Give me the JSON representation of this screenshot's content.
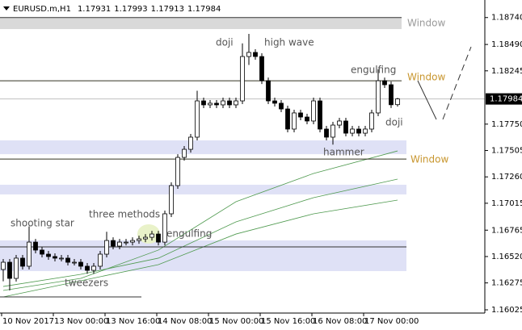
{
  "chart_data": {
    "type": "candlestick",
    "symbol": "EURUSD.m,H1",
    "categories": [
      "10 Nov 2017",
      null,
      null,
      null,
      null,
      null,
      null,
      null,
      "13 Nov 00:00",
      null,
      null,
      null,
      null,
      null,
      null,
      null,
      "13 Nov 16:00",
      null,
      null,
      null,
      null,
      null,
      null,
      null,
      "14 Nov 08:00",
      null,
      null,
      null,
      null,
      null,
      null,
      null,
      "15 Nov 00:00",
      null,
      null,
      null,
      null,
      null,
      null,
      null,
      "15 Nov 16:00",
      null,
      null,
      null,
      null,
      null,
      null,
      null,
      "16 Nov 08:00",
      null,
      null,
      null,
      null,
      null,
      null,
      null,
      "17 Nov 00:00",
      null,
      null,
      null,
      null,
      null
    ],
    "open": [
      1.164,
      1.16467,
      1.16317,
      1.16505,
      1.1643,
      1.16654,
      1.1658,
      1.16542,
      1.1652,
      1.16505,
      1.16505,
      1.16467,
      1.16467,
      1.1643,
      1.16392,
      1.1643,
      1.16542,
      1.16669,
      1.16617,
      1.16654,
      1.16654,
      1.16669,
      1.16684,
      1.16699,
      1.16729,
      1.16654,
      1.16917,
      1.17179,
      1.17441,
      1.17516,
      1.17629,
      1.17966,
      1.17929,
      1.17944,
      1.17929,
      1.17966,
      1.17929,
      1.17966,
      1.18378,
      1.18416,
      1.18378,
      1.18153,
      1.17966,
      1.17944,
      1.17891,
      1.17704,
      1.17854,
      1.17816,
      1.17779,
      1.17966,
      1.17704,
      1.17629,
      1.17741,
      1.17779,
      1.17666,
      1.17704,
      1.17666,
      1.17704,
      1.17854,
      1.18153,
      1.18116,
      1.17931
    ],
    "high": [
      1.16497,
      1.16497,
      1.16535,
      1.16535,
      1.168,
      1.16684,
      1.1661,
      1.16572,
      1.1655,
      1.16535,
      1.16535,
      1.16497,
      1.16497,
      1.1646,
      1.1646,
      1.16572,
      1.1675,
      1.16699,
      1.16684,
      1.16684,
      1.16699,
      1.16714,
      1.16729,
      1.16759,
      1.16759,
      1.16947,
      1.17209,
      1.17471,
      1.17546,
      1.17659,
      1.1806,
      1.17996,
      1.17974,
      1.17974,
      1.17996,
      1.17996,
      1.17996,
      1.185,
      1.18588,
      1.18446,
      1.18408,
      1.18183,
      1.17996,
      1.17974,
      1.17921,
      1.17884,
      1.17884,
      1.17846,
      1.17996,
      1.17996,
      1.17734,
      1.17771,
      1.17809,
      1.17809,
      1.17734,
      1.17734,
      1.17734,
      1.17884,
      1.1826,
      1.18183,
      1.18146,
      1.17993
    ],
    "low": [
      1.1629,
      1.16205,
      1.16287,
      1.164,
      1.164,
      1.1655,
      1.16512,
      1.1649,
      1.16475,
      1.16475,
      1.16437,
      1.16437,
      1.164,
      1.1636,
      1.1636,
      1.164,
      1.16512,
      1.16587,
      1.16587,
      1.16624,
      1.16624,
      1.16639,
      1.16654,
      1.16669,
      1.16624,
      1.16624,
      1.16887,
      1.17149,
      1.17411,
      1.17486,
      1.17599,
      1.17899,
      1.17899,
      1.17899,
      1.17899,
      1.17899,
      1.17899,
      1.17936,
      1.183,
      1.18348,
      1.18123,
      1.17936,
      1.17914,
      1.17861,
      1.17674,
      1.17674,
      1.17786,
      1.17749,
      1.17749,
      1.17674,
      1.17599,
      1.1756,
      1.17711,
      1.17636,
      1.17636,
      1.17636,
      1.17636,
      1.17674,
      1.17824,
      1.18086,
      1.179,
      1.17913
    ],
    "close": [
      1.16467,
      1.16317,
      1.16505,
      1.1643,
      1.16654,
      1.1658,
      1.16542,
      1.1652,
      1.16505,
      1.16505,
      1.16467,
      1.16467,
      1.1643,
      1.16392,
      1.1643,
      1.16542,
      1.16669,
      1.16617,
      1.16654,
      1.16654,
      1.16669,
      1.16684,
      1.16699,
      1.16729,
      1.16654,
      1.16917,
      1.17179,
      1.17441,
      1.17516,
      1.17629,
      1.17966,
      1.17929,
      1.17944,
      1.17929,
      1.17966,
      1.17929,
      1.17966,
      1.18378,
      1.18416,
      1.18378,
      1.18153,
      1.17966,
      1.17944,
      1.17891,
      1.17704,
      1.17854,
      1.17816,
      1.17779,
      1.17966,
      1.17704,
      1.17629,
      1.17741,
      1.17779,
      1.17666,
      1.17704,
      1.17666,
      1.17704,
      1.17854,
      1.18153,
      1.18116,
      1.1793,
      1.17984
    ],
    "color": "#000000",
    "ylim": [
      1.15995,
      1.18903
    ],
    "yticks": [
      {
        "value": 1.1874,
        "label": "1.18740"
      },
      {
        "value": 1.1849,
        "label": "1.18490"
      },
      1.18245,
      {
        "value": 1.1775,
        "label": "1.17750"
      },
      1.17505,
      {
        "value": 1.1726,
        "label": "1.17260"
      },
      1.17015,
      1.16765,
      {
        "value": 1.1652,
        "label": "1.16520"
      },
      1.16275,
      1.16025
    ],
    "moving_averages": [
      {
        "color": "#4f9a4f",
        "x": [
          0,
          12,
          24,
          36,
          48,
          61
        ],
        "values": [
          1.16205,
          1.16317,
          1.1658,
          1.17029,
          1.17292,
          1.17501
        ]
      },
      {
        "color": "#4f9a4f",
        "x": [
          0,
          12,
          24,
          36,
          48,
          61
        ],
        "values": [
          1.16242,
          1.16355,
          1.16505,
          1.16842,
          1.17067,
          1.17239
        ]
      },
      {
        "color": "#4f9a4f",
        "x": [
          0,
          12,
          24,
          36,
          48,
          61
        ],
        "values": [
          1.16145,
          1.16295,
          1.16445,
          1.16729,
          1.16917,
          1.17044
        ]
      }
    ],
    "zones": [
      {
        "from": 1.1874,
        "to": 1.18633,
        "color": "#d9d9d9"
      },
      {
        "from": 1.17599,
        "to": 1.17471,
        "color": "#dfe1f6"
      },
      {
        "from": 1.17187,
        "to": 1.17097,
        "color": "#dfe1f6"
      },
      {
        "from": 1.1667,
        "to": 1.16385,
        "color": "#dfe1f6"
      }
    ],
    "levels": [
      {
        "value": 1.1874,
        "color": "#333333"
      },
      {
        "value": 1.18153,
        "color": "#333322"
      },
      {
        "value": 1.17426,
        "color": "#333322"
      },
      {
        "value": 1.1661,
        "color": "#333333"
      },
      {
        "value": 1.16145,
        "color": "#333333"
      }
    ],
    "annotations": [
      {
        "text": "Window",
        "color": "#9a9a9a"
      },
      {
        "text": "Window",
        "color": "#c8962e"
      },
      {
        "text": "Window",
        "color": "#c8962e"
      },
      {
        "text": "doji",
        "color": "#555555"
      },
      {
        "text": "high wave",
        "color": "#555555"
      },
      {
        "text": "engulfing",
        "color": "#555555"
      },
      {
        "text": "doji",
        "color": "#555555"
      },
      {
        "text": "hammer",
        "color": "#555555"
      },
      {
        "text": "shooting star",
        "color": "#555555"
      },
      {
        "text": "three methods",
        "color": "#555555"
      },
      {
        "text": "engulfing",
        "color": "#555555"
      },
      {
        "text": "tweezers",
        "color": "#555555"
      }
    ]
  }
}
